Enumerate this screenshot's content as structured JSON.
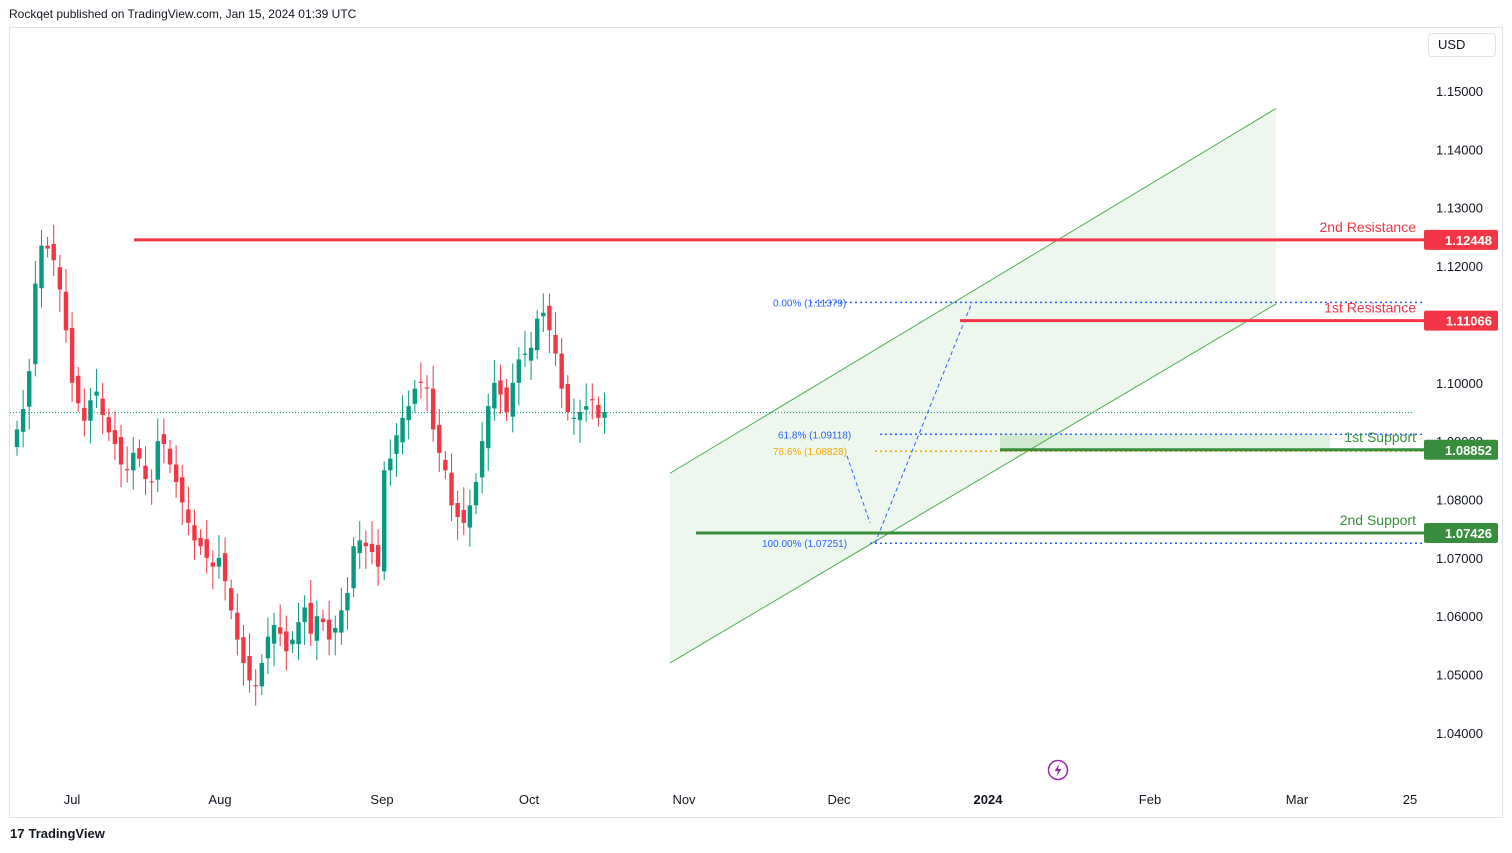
{
  "header": {
    "text": "Rockqet published on TradingView.com, Jan 15, 2024 01:39 UTC"
  },
  "currency_button": {
    "label": "USD"
  },
  "footer": {
    "logo_text": "TradingView"
  },
  "colors": {
    "bull": "#089981",
    "bear": "#f23645",
    "resistance": "#f23645",
    "support": "#388e3c",
    "channel": "#4caf50",
    "fib": "#2962ff",
    "fib_mid": "#f2a900"
  },
  "levels": {
    "resistance2": {
      "label": "2nd Resistance",
      "value": "1.12448"
    },
    "resistance1": {
      "label": "1st Resistance",
      "value": "1.11066"
    },
    "support1": {
      "label": "1st Support",
      "value": "1.08852"
    },
    "support2": {
      "label": "2nd Support",
      "value": "1.07426"
    }
  },
  "fib_labels": {
    "top": "0.00% (1.11379)",
    "mid1": "61.8% (1.09118)",
    "mid2": "78.6% (1.08828)",
    "bottom": "100.00% (1.07251)"
  },
  "chart_data": {
    "type": "candlestick",
    "symbol_currency": "USD",
    "y_ticks": [
      "1.15000",
      "1.14000",
      "1.13000",
      "1.12000",
      "1.10000",
      "1.09000",
      "1.08000",
      "1.07000",
      "1.06000",
      "1.05000",
      "1.04000"
    ],
    "x_ticks": [
      "Jul",
      "Aug",
      "Sep",
      "Oct",
      "Nov",
      "Dec",
      "2024",
      "Feb",
      "Mar",
      "25"
    ],
    "ylim": [
      1.035,
      1.164
    ],
    "last_price_approx": 1.0949,
    "horizontal_levels": [
      {
        "name": "2nd Resistance",
        "value": 1.12448
      },
      {
        "name": "1st Resistance",
        "value": 1.11066
      },
      {
        "name": "1st Support",
        "value": 1.08852
      },
      {
        "name": "2nd Support",
        "value": 1.07426
      }
    ],
    "fibonacci": [
      {
        "level": "0.00%",
        "price": 1.11379
      },
      {
        "level": "61.8%",
        "price": 1.09118
      },
      {
        "level": "78.6%",
        "price": 1.08828
      },
      {
        "level": "100.00%",
        "price": 1.07251
      }
    ],
    "channel": {
      "lower_start": {
        "date": "Nov",
        "price": 1.052
      },
      "lower_end": {
        "date": "late Feb",
        "price": 1.1135
      },
      "upper_start": {
        "date": "Nov",
        "price": 1.0845
      },
      "upper_end": {
        "date": "late Feb",
        "price": 1.147
      }
    },
    "closes_approx": [
      1.092,
      1.0955,
      1.102,
      1.117,
      1.1235,
      1.123,
      1.121,
      1.116,
      1.109,
      1.1,
      1.0965,
      1.0935,
      1.097,
      1.0985,
      1.0945,
      1.0915,
      1.0895,
      1.086,
      1.085,
      1.088,
      1.087,
      1.0835,
      1.083,
      1.09,
      1.0895,
      1.086,
      1.083,
      1.0795,
      1.076,
      1.073,
      1.072,
      1.07,
      1.0685,
      1.07,
      1.066,
      1.061,
      1.056,
      1.052,
      1.049,
      1.048,
      1.052,
      1.0565,
      1.0585,
      1.057,
      1.054,
      1.056,
      1.059,
      1.0615,
      1.057,
      1.06,
      1.059,
      1.056,
      1.058,
      1.061,
      1.064,
      1.072,
      1.073,
      1.072,
      1.071,
      1.0685,
      1.085,
      1.087,
      1.091,
      1.094,
      1.096,
      1.099,
      1.1,
      1.099,
      1.092,
      1.088,
      1.085,
      1.079,
      1.077,
      1.076,
      1.079,
      1.083,
      1.09,
      1.096,
      1.1,
      1.098,
      1.095,
      1.1,
      1.104,
      1.105,
      1.106,
      1.111,
      1.112,
      1.109,
      1.105,
      1.099,
      1.095,
      1.094,
      1.095,
      1.096,
      1.097,
      1.094,
      1.095
    ]
  }
}
